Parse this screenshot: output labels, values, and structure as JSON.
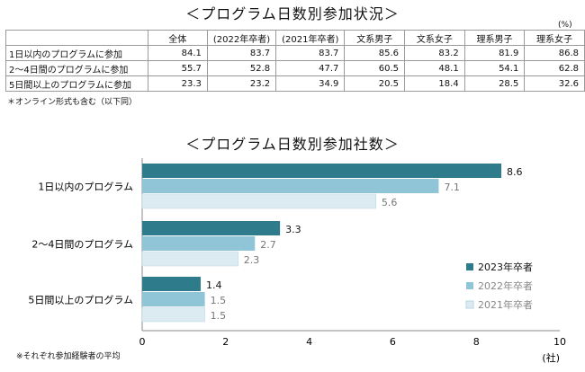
{
  "table": {
    "title": "＜プログラム日数別参加状況＞",
    "unit": "(%)",
    "columns": [
      "全体",
      "(2022年卒者)",
      "(2021年卒者)",
      "文系男子",
      "文系女子",
      "理系男子",
      "理系女子"
    ],
    "rows": [
      {
        "label": "1日以内のプログラムに参加",
        "values": [
          "84.1",
          "83.7",
          "83.7",
          "85.6",
          "83.2",
          "81.9",
          "86.8"
        ]
      },
      {
        "label": "2～4日間のプログラムに参加",
        "values": [
          "55.7",
          "52.8",
          "47.7",
          "60.5",
          "48.1",
          "54.1",
          "62.8"
        ]
      },
      {
        "label": "5日間以上のプログラムに参加",
        "values": [
          "23.3",
          "23.2",
          "34.9",
          "20.5",
          "18.4",
          "28.5",
          "32.6"
        ]
      }
    ],
    "note": "＊オンライン形式も含む（以下同）"
  },
  "chart_data": {
    "type": "bar",
    "orientation": "horizontal",
    "title": "＜プログラム日数別参加社数＞",
    "categories": [
      "1日以内のプログラム",
      "2～4日間のプログラム",
      "5日間以上のプログラム"
    ],
    "series": [
      {
        "name": "2023年卒者",
        "values": [
          8.6,
          3.3,
          1.4
        ],
        "labels": [
          "8.6",
          "3.3",
          "1.4"
        ],
        "color": "#2e7b8c"
      },
      {
        "name": "2022年卒者",
        "values": [
          7.1,
          2.7,
          1.5
        ],
        "labels": [
          "7.1",
          "2.7",
          "1.5"
        ],
        "color": "#8fc5d6"
      },
      {
        "name": "2021年卒者",
        "values": [
          5.6,
          2.3,
          1.5
        ],
        "labels": [
          "5.6",
          "2.3",
          "1.5"
        ],
        "color": "#dcebf2"
      }
    ],
    "xlim": [
      0,
      10
    ],
    "xticks": [
      "0",
      "2",
      "4",
      "6",
      "8",
      "10"
    ],
    "xlabel": "(社)",
    "legend_position": "bottom-right",
    "grid": false,
    "note": "※それぞれ参加経験者の平均"
  }
}
